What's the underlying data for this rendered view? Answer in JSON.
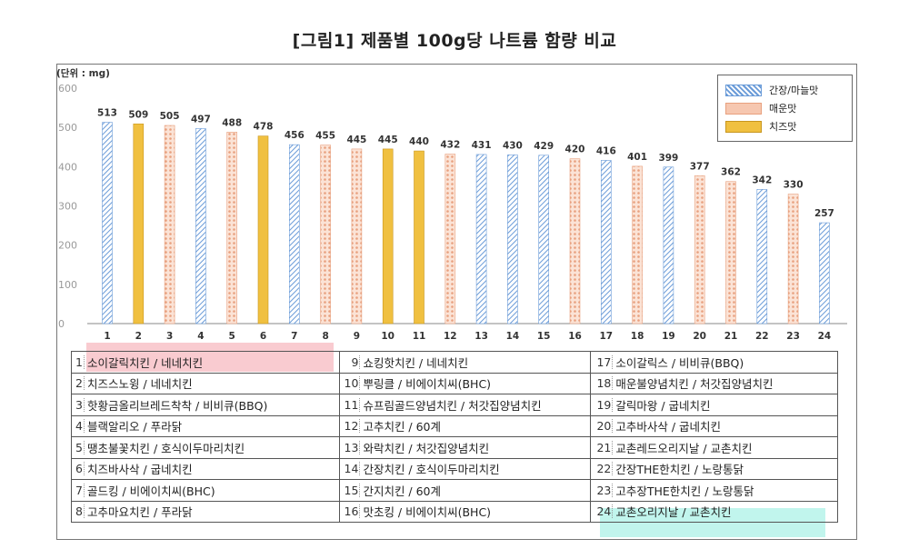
{
  "page_title": "[그림1] 제품별 100g당 나트륨 함량 비교",
  "colors": {
    "soy_garlic": "#6a9bd8",
    "spicy": "#e8a07e",
    "cheese": "#f0c040",
    "highlight_pink": "#f28c96",
    "highlight_cyan": "#64e6d2"
  },
  "chart_data": {
    "type": "bar",
    "title": "[그림1] 제품별 100g당 나트륨 함량 비교",
    "unit_label": "(단위 : mg)",
    "ylim": [
      0,
      600
    ],
    "yticks": [
      0,
      100,
      200,
      300,
      400,
      500,
      600
    ],
    "categories": [
      "1",
      "2",
      "3",
      "4",
      "5",
      "6",
      "7",
      "8",
      "9",
      "10",
      "11",
      "12",
      "13",
      "14",
      "15",
      "16",
      "17",
      "18",
      "19",
      "20",
      "21",
      "22",
      "23",
      "24"
    ],
    "values": [
      513,
      509,
      505,
      497,
      488,
      478,
      456,
      455,
      445,
      445,
      440,
      432,
      431,
      430,
      429,
      420,
      416,
      401,
      399,
      377,
      362,
      342,
      330,
      257
    ],
    "bar_series": [
      "soy",
      "cheese",
      "spicy",
      "soy",
      "spicy",
      "cheese",
      "soy",
      "spicy",
      "spicy",
      "cheese",
      "cheese",
      "spicy",
      "soy",
      "soy",
      "soy",
      "spicy",
      "soy",
      "spicy",
      "soy",
      "spicy",
      "spicy",
      "soy",
      "spicy",
      "soy"
    ],
    "series": [
      {
        "key": "soy",
        "name": "간장/마늘맛"
      },
      {
        "key": "spicy",
        "name": "매운맛"
      },
      {
        "key": "cheese",
        "name": "치즈맛"
      }
    ],
    "legend_position": "top-right",
    "grid": false
  },
  "product_table": [
    [
      {
        "num": "1",
        "name": "소이갈릭치킨 / 네네치킨"
      },
      {
        "num": "9",
        "name": "쇼킹핫치킨 / 네네치킨"
      },
      {
        "num": "17",
        "name": "소이갈릭스 / 비비큐(BBQ)"
      }
    ],
    [
      {
        "num": "2",
        "name": "치즈스노윙 / 네네치킨"
      },
      {
        "num": "10",
        "name": "뿌링클 / 비에이치씨(BHC)"
      },
      {
        "num": "18",
        "name": "매운불양념치킨 / 처갓집양념치킨"
      }
    ],
    [
      {
        "num": "3",
        "name": "핫황금올리브레드착착 / 비비큐(BBQ)"
      },
      {
        "num": "11",
        "name": "슈프림골드양념치킨 / 처갓집양념치킨"
      },
      {
        "num": "19",
        "name": "갈릭마왕 / 굽네치킨"
      }
    ],
    [
      {
        "num": "4",
        "name": "블랙알리오 / 푸라닭"
      },
      {
        "num": "12",
        "name": "고추치킨 / 60계"
      },
      {
        "num": "20",
        "name": "고추바사삭 / 굽네치킨"
      }
    ],
    [
      {
        "num": "5",
        "name": "땡초불꽃치킨 / 호식이두마리치킨"
      },
      {
        "num": "13",
        "name": "와락치킨 / 처갓집양념치킨"
      },
      {
        "num": "21",
        "name": "교촌레드오리지날 / 교촌치킨"
      }
    ],
    [
      {
        "num": "6",
        "name": "치즈바사삭 / 굽네치킨"
      },
      {
        "num": "14",
        "name": "간장치킨 / 호식이두마리치킨"
      },
      {
        "num": "22",
        "name": "간장THE한치킨 / 노랑통닭"
      }
    ],
    [
      {
        "num": "7",
        "name": "골드킹 / 비에이치씨(BHC)"
      },
      {
        "num": "15",
        "name": "간지치킨 / 60계"
      },
      {
        "num": "23",
        "name": "고추장THE한치킨 / 노랑통닭"
      }
    ],
    [
      {
        "num": "8",
        "name": "고추마요치킨 / 푸라닭"
      },
      {
        "num": "16",
        "name": "맛초킹 / 비에이치씨(BHC)"
      },
      {
        "num": "24",
        "name": "교촌오리지날 / 교촌치킨"
      }
    ]
  ]
}
